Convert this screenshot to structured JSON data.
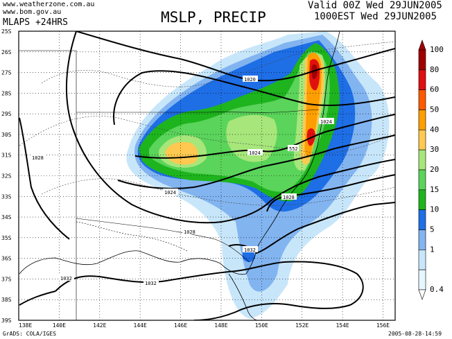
{
  "header": {
    "site_line1": "www.weatherzone.com.au",
    "site_line2": "www.bom.gov.au",
    "model": "MLAPS +24HRS",
    "title": "MSLP, PRECIP",
    "valid_line1": "Valid 00Z Wed 29JUN2005",
    "valid_line2": "1000EST Wed 29JUN2005"
  },
  "footer": {
    "grads": "GrADS: COLA/IGES",
    "timestamp": "2005-08-28-14:59"
  },
  "map": {
    "lat_labels": [
      "25S",
      "26S",
      "27S",
      "28S",
      "29S",
      "30S",
      "31S",
      "32S",
      "33S",
      "34S",
      "35S",
      "36S",
      "37S",
      "38S",
      "39S"
    ],
    "lon_labels": [
      "138E",
      "140E",
      "142E",
      "144E",
      "146E",
      "148E",
      "150E",
      "152E",
      "154E",
      "156E"
    ],
    "isobar_labels": [
      "1020",
      "1024",
      "1024",
      "1024",
      "1028",
      "1028",
      "1028",
      "1032",
      "1032",
      "1032"
    ],
    "special_label": "552"
  },
  "colorbar": {
    "levels": [
      "100",
      "80",
      "60",
      "50",
      "40",
      "30",
      "20",
      "15",
      "10",
      "5",
      "1",
      "0.4"
    ],
    "colors": [
      "#a00000",
      "#e01010",
      "#ff5a00",
      "#ff9e00",
      "#ffc850",
      "#a6e67a",
      "#5ad45a",
      "#1eb41e",
      "#1e6ee6",
      "#82b4f0",
      "#c8e6fa",
      "#e6f6ff"
    ]
  },
  "colors": {
    "precip_light": "#c8e6fa",
    "precip_mid": "#82b4f0",
    "precip_blue": "#1e6ee6",
    "precip_green": "#1eb41e",
    "precip_lgreen": "#5ad45a",
    "precip_pale": "#a6e67a",
    "precip_yellow": "#ffc850",
    "precip_orange": "#ff9e00",
    "precip_red": "#e01010",
    "precip_dark": "#a00000"
  }
}
